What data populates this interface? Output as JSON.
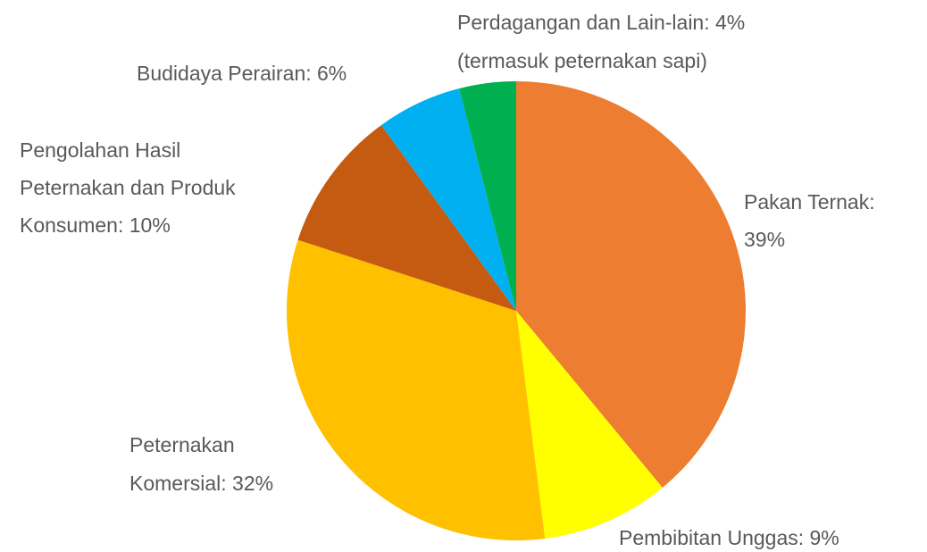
{
  "chart_data": {
    "type": "pie",
    "values": [
      39,
      9,
      32,
      10,
      6,
      4
    ],
    "value_labels": [
      [
        "Pakan Ternak:",
        "39%"
      ],
      [
        "Pembibitan Unggas: 9%"
      ],
      [
        "Peternakan",
        "Komersial: 32%"
      ],
      [
        "Pengolahan Hasil",
        "Peternakan dan Produk",
        "Konsumen: 10%"
      ],
      [
        "Budidaya Perairan: 6%"
      ],
      [
        "Perdagangan dan Lain-lain: 4%",
        "(termasuk peternakan sapi)"
      ]
    ],
    "colors": [
      "#ed7d31",
      "#ffff00",
      "#ffc000",
      "#c55a11",
      "#00b0f0",
      "#00b050"
    ]
  }
}
